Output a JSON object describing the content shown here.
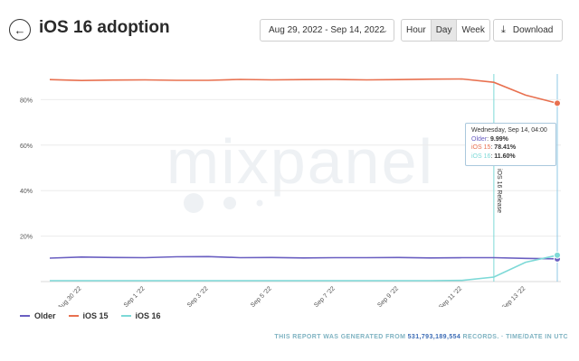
{
  "header": {
    "title": "iOS 16 adoption",
    "date_range": "Aug 29, 2022 - Sep 14, 2022",
    "granularity": [
      "Hour",
      "Day",
      "Week"
    ],
    "granularity_selected": "Day",
    "download_label": "Download"
  },
  "watermark": "mixpanel",
  "tooltip": {
    "title": "Wednesday, Sep 14, 04:00",
    "rows": [
      {
        "label": "Older",
        "value": "9.99%",
        "color": "#6a5fc1"
      },
      {
        "label": "iOS 15",
        "value": "78.41%",
        "color": "#e8704f"
      },
      {
        "label": "iOS 16",
        "value": "11.60%",
        "color": "#7dd9d7"
      }
    ]
  },
  "footer": {
    "prefix": "THIS REPORT WAS GENERATED FROM ",
    "count": "531,793,189,554",
    "suffix": " RECORDS. · TIME/DATE IN UTC"
  },
  "chart_data": {
    "type": "line",
    "x": [
      "Aug 29 '22",
      "Aug 30 '22",
      "Aug 31 '22",
      "Sep 1 '22",
      "Sep 2 '22",
      "Sep 3 '22",
      "Sep 4 '22",
      "Sep 5 '22",
      "Sep 6 '22",
      "Sep 7 '22",
      "Sep 8 '22",
      "Sep 9 '22",
      "Sep 10 '22",
      "Sep 11 '22",
      "Sep 12 '22",
      "Sep 13 '22",
      "Sep 14 '22"
    ],
    "tick_labels": [
      "Aug 30 '22",
      "Sep 1 '22",
      "Sep 3 '22",
      "Sep 5 '22",
      "Sep 7 '22",
      "Sep 9 '22",
      "Sep 11 '22",
      "Sep 13 '22"
    ],
    "series": [
      {
        "name": "Older",
        "color": "#6a5fc1",
        "values": [
          10.3,
          10.8,
          10.6,
          10.5,
          10.9,
          11.0,
          10.5,
          10.6,
          10.4,
          10.5,
          10.5,
          10.6,
          10.4,
          10.5,
          10.5,
          10.2,
          9.99
        ]
      },
      {
        "name": "iOS 15",
        "color": "#e8704f",
        "values": [
          88.8,
          88.4,
          88.6,
          88.7,
          88.5,
          88.5,
          88.9,
          88.7,
          88.8,
          88.9,
          88.7,
          88.8,
          89.0,
          89.1,
          87.6,
          82.0,
          78.41
        ]
      },
      {
        "name": "iOS 16",
        "color": "#7dd9d7",
        "values": [
          0.4,
          0.4,
          0.4,
          0.4,
          0.4,
          0.4,
          0.4,
          0.4,
          0.4,
          0.4,
          0.4,
          0.4,
          0.4,
          0.5,
          2.0,
          8.5,
          11.6
        ]
      }
    ],
    "ylim": [
      0,
      100
    ],
    "yticks": [
      20,
      40,
      60,
      80
    ],
    "ytick_labels": [
      "20%",
      "40%",
      "60%",
      "80%"
    ],
    "grid": true,
    "legend": "bottom-left",
    "annotations": [
      {
        "x": "Sep 12 '22",
        "label": "iOS 16 Release"
      }
    ]
  }
}
